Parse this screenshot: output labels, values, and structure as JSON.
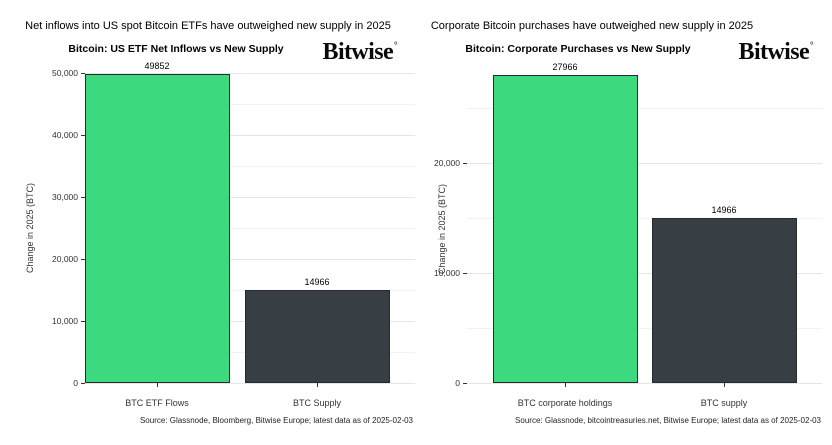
{
  "brand": {
    "wordmark": "Bitwise",
    "trademark": "°"
  },
  "colors": {
    "bar_green": "#3cd97f",
    "bar_dark": "#373e44",
    "bar_border": "#26292e",
    "grid_major": "#e5e5e5",
    "grid_minor": "#f2f2f2",
    "background": "#ffffff"
  },
  "chart_data": [
    {
      "type": "bar",
      "title": "Net inflows into US spot Bitcoin ETFs have outweighed new supply in 2025",
      "subtitle": "Bitcoin: US ETF Net Inflows vs New Supply",
      "ylabel": "Change in 2025 (BTC)",
      "xlabel": "",
      "categories": [
        "BTC ETF Flows",
        "BTC Supply"
      ],
      "values": [
        49852,
        14966
      ],
      "value_labels": [
        "49852",
        "14966"
      ],
      "bar_colors": [
        "#3cd97f",
        "#373e44"
      ],
      "ylim": [
        0,
        50000
      ],
      "yticks": [
        0,
        10000,
        20000,
        30000,
        40000,
        50000
      ],
      "ytick_labels": [
        "0",
        "10,000",
        "20,000",
        "30,000",
        "40,000",
        "50,000"
      ],
      "minor_yticks": [
        5000,
        15000,
        25000,
        35000,
        45000
      ],
      "grid": true,
      "legend": false,
      "source": "Source: Glassnode, Bloomberg, Bitwise Europe; latest data as of 2025-02-03"
    },
    {
      "type": "bar",
      "title": "Corporate Bitcoin purchases have outweighed new supply in 2025",
      "subtitle": "Bitcoin: Corporate Purchases vs New Supply",
      "ylabel": "Change in 2025 (BTC)",
      "xlabel": "",
      "categories": [
        "BTC corporate holdings",
        "BTC supply"
      ],
      "values": [
        27966,
        14966
      ],
      "value_labels": [
        "27966",
        "14966"
      ],
      "bar_colors": [
        "#3cd97f",
        "#373e44"
      ],
      "ylim": [
        0,
        28000
      ],
      "yticks": [
        0,
        10000,
        20000
      ],
      "ytick_labels": [
        "0",
        "10,000",
        "20,000"
      ],
      "minor_yticks": [
        5000,
        15000,
        25000
      ],
      "grid": true,
      "legend": false,
      "source": "Source: Glassnode, bitcointreasuries.net, Bitwise Europe; latest data as of 2025-02-03"
    }
  ]
}
